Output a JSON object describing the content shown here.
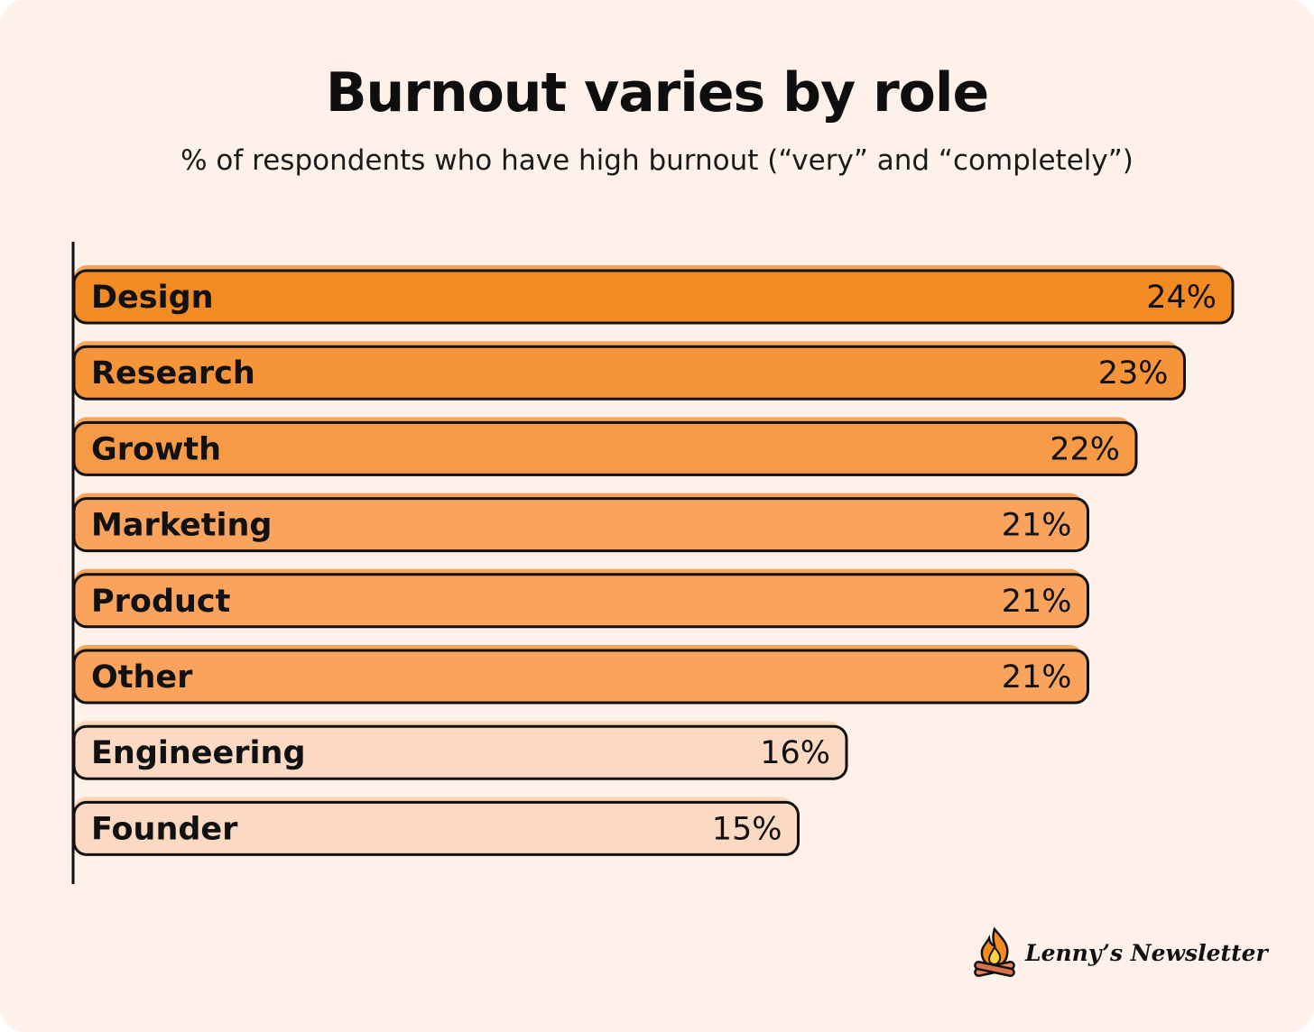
{
  "chart_data": {
    "type": "bar",
    "orientation": "horizontal",
    "title": "Burnout varies by role",
    "subtitle": "% of respondents who have high burnout (“very” and “completely”)",
    "categories": [
      "Design",
      "Research",
      "Growth",
      "Marketing",
      "Product",
      "Other",
      "Engineering",
      "Founder"
    ],
    "values": [
      24,
      23,
      22,
      21,
      21,
      21,
      16,
      15
    ],
    "value_labels": [
      "24%",
      "23%",
      "22%",
      "21%",
      "21%",
      "21%",
      "16%",
      "15%"
    ],
    "bar_colors": [
      "#f38b24",
      "#f69439",
      "#f79a45",
      "#f9a35c",
      "#f9a35c",
      "#f9a35c",
      "#fcd9c3",
      "#fcd9c3"
    ],
    "xlabel": "",
    "ylabel": "",
    "grid": false
  },
  "colors": {
    "background": "#fdf1ea",
    "outline": "#111111",
    "bar_shadow": "#f6a65a",
    "light_bar_shadow": "#fbd3b9"
  },
  "brand": {
    "name": "Lenny’s Newsletter",
    "icon": "campfire-icon"
  }
}
